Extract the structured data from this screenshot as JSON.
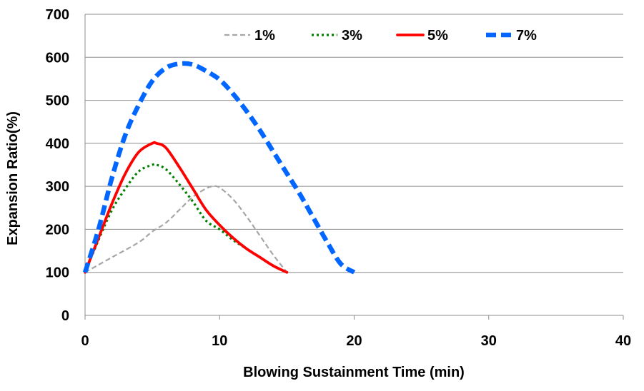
{
  "chart_data": {
    "type": "line",
    "title": "",
    "xlabel": "Blowing Sustainment Time (min)",
    "ylabel": "Expansion Ratio(%)",
    "xlim": [
      0,
      40
    ],
    "ylim": [
      0,
      700
    ],
    "xticks": [
      0,
      10,
      20,
      30,
      40
    ],
    "yticks": [
      0,
      100,
      200,
      300,
      400,
      500,
      600,
      700
    ],
    "grid": "horizontal",
    "legend_position": "top",
    "series": [
      {
        "name": "1%",
        "color": "#a6a6a6",
        "style": "dashed-thin",
        "x": [
          0,
          2,
          4,
          5,
          6,
          7,
          8,
          9,
          9.5,
          10,
          11,
          12,
          13,
          14,
          15
        ],
        "y": [
          100,
          135,
          170,
          195,
          215,
          245,
          275,
          295,
          300,
          297,
          270,
          230,
          185,
          140,
          100
        ]
      },
      {
        "name": "3%",
        "color": "#008000",
        "style": "dotted",
        "x": [
          0,
          1,
          2,
          3,
          4,
          5,
          5.3,
          6,
          7,
          8,
          9,
          10,
          11,
          12,
          13,
          14,
          15
        ],
        "y": [
          100,
          175,
          245,
          295,
          335,
          350,
          350,
          340,
          305,
          265,
          220,
          200,
          175,
          155,
          135,
          115,
          100
        ]
      },
      {
        "name": "5%",
        "color": "#ff0000",
        "style": "solid",
        "x": [
          0,
          1,
          2,
          3,
          4,
          5,
          5.3,
          6,
          7,
          8,
          9,
          10,
          11,
          12,
          13,
          14,
          15
        ],
        "y": [
          100,
          180,
          260,
          330,
          380,
          400,
          400,
          390,
          345,
          295,
          245,
          210,
          180,
          155,
          135,
          115,
          100
        ]
      },
      {
        "name": "7%",
        "color": "#0066ff",
        "style": "dashed-thick",
        "x": [
          0,
          1,
          2,
          3,
          4,
          5,
          6,
          7,
          8,
          9,
          10,
          11,
          12,
          13,
          14,
          15,
          16,
          17,
          18,
          19,
          20
        ],
        "y": [
          100,
          200,
          320,
          420,
          490,
          545,
          575,
          585,
          583,
          568,
          548,
          515,
          475,
          430,
          380,
          330,
          280,
          225,
          170,
          120,
          100
        ]
      }
    ]
  }
}
